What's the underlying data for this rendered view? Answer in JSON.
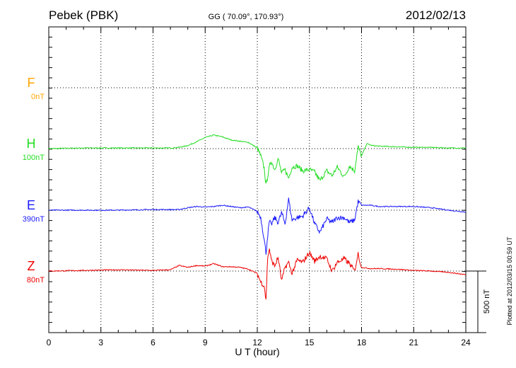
{
  "header": {
    "station": "Pebek (PBK)",
    "coords": "GG ( 70.09°, 170.93°)",
    "date": "2012/02/13"
  },
  "footer": {
    "plotted": "Plotted at 2012/03/15 00:59 UT"
  },
  "scale_bar": {
    "label": "500 nT",
    "value_nT": 500
  },
  "chart_data": {
    "type": "line",
    "xlabel": "U T (hour)",
    "xlim": [
      0,
      24
    ],
    "xticks": [
      "0",
      "3",
      "6",
      "9",
      "12",
      "15",
      "18",
      "21",
      "24"
    ],
    "grid": true,
    "series": [
      {
        "name": "F",
        "offset_label": "0nT",
        "color": "#ffa500",
        "x": [],
        "y": []
      },
      {
        "name": "H",
        "offset_label": "100nT",
        "color": "#22dd22",
        "x": [
          0,
          2,
          4,
          6,
          7,
          7.5,
          8,
          8.5,
          9,
          9.5,
          10,
          10.5,
          11,
          11.5,
          12,
          12.2,
          12.4,
          12.5,
          12.6,
          12.7,
          12.8,
          13,
          13.2,
          13.4,
          13.6,
          13.8,
          14,
          14.3,
          14.6,
          15,
          15.3,
          15.6,
          16,
          16.3,
          16.6,
          17,
          17.3,
          17.6,
          17.8,
          18,
          18.3,
          18.6,
          19,
          20,
          21,
          22,
          23,
          24
        ],
        "y": [
          0,
          5,
          5,
          5,
          5,
          10,
          25,
          55,
          90,
          110,
          95,
          70,
          60,
          50,
          5,
          -60,
          -160,
          -300,
          -220,
          -150,
          -100,
          -170,
          -80,
          -200,
          -170,
          -240,
          -150,
          -140,
          -180,
          -170,
          -190,
          -260,
          -180,
          -220,
          -150,
          -230,
          -140,
          -180,
          15,
          -60,
          40,
          25,
          20,
          15,
          10,
          10,
          5,
          5
        ]
      },
      {
        "name": "E",
        "offset_label": "390nT",
        "color": "#1a1aff",
        "x": [
          0,
          2,
          4,
          6,
          7,
          7.5,
          8,
          8.5,
          9,
          9.5,
          10,
          10.5,
          11,
          11.5,
          12,
          12.2,
          12.4,
          12.5,
          12.6,
          12.7,
          12.8,
          13,
          13.2,
          13.4,
          13.6,
          13.8,
          14,
          14.3,
          14.6,
          15,
          15.3,
          15.6,
          16,
          16.3,
          16.6,
          17,
          17.3,
          17.6,
          17.8,
          18,
          18.5,
          19,
          20,
          21,
          22,
          23,
          24
        ],
        "y": [
          0,
          0,
          0,
          5,
          5,
          5,
          20,
          30,
          25,
          30,
          40,
          30,
          20,
          25,
          -10,
          -60,
          -240,
          -350,
          -200,
          -90,
          -120,
          -60,
          -100,
          -20,
          -110,
          90,
          -80,
          -60,
          -50,
          20,
          -110,
          -180,
          -70,
          -100,
          -60,
          -60,
          -100,
          -80,
          70,
          40,
          40,
          30,
          30,
          30,
          20,
          0,
          -15
        ]
      },
      {
        "name": "Z",
        "offset_label": "80nT",
        "color": "#ee0000",
        "x": [
          0,
          2,
          4,
          6,
          7,
          7.5,
          8,
          8.5,
          9,
          9.5,
          10,
          10.5,
          11,
          11.5,
          12,
          12.2,
          12.4,
          12.5,
          12.6,
          12.7,
          12.8,
          13,
          13.2,
          13.4,
          13.6,
          13.8,
          14,
          14.3,
          14.6,
          15,
          15.3,
          15.6,
          16,
          16.3,
          16.6,
          17,
          17.3,
          17.6,
          17.8,
          18,
          18.5,
          19,
          20,
          21,
          22,
          23,
          24
        ],
        "y": [
          0,
          5,
          10,
          5,
          10,
          45,
          30,
          45,
          40,
          60,
          35,
          35,
          30,
          15,
          -20,
          -90,
          -120,
          -240,
          120,
          180,
          90,
          40,
          110,
          -80,
          30,
          70,
          -20,
          90,
          70,
          150,
          80,
          120,
          100,
          0,
          70,
          100,
          60,
          0,
          140,
          30,
          20,
          20,
          15,
          5,
          0,
          -10,
          -30
        ]
      }
    ]
  }
}
